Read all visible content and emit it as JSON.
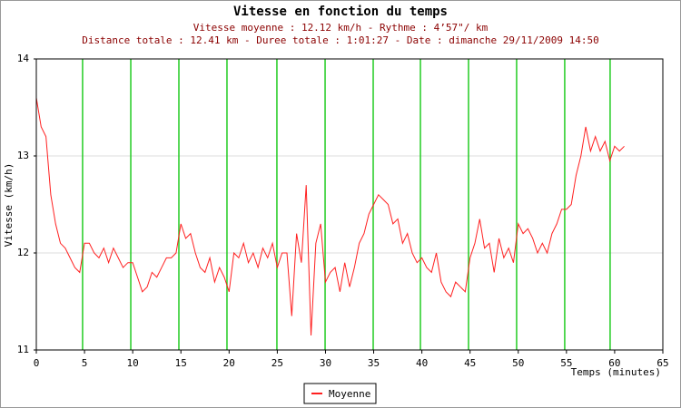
{
  "chart_data": {
    "type": "line",
    "title": "Vitesse en fonction du temps",
    "subtitles": [
      "Vitesse moyenne : 12.12 km/h - Rythme : 4’57\"/ km",
      "Distance totale : 12.41 km - Duree totale : 1:01:27 - Date : dimanche 29/11/2009 14:50"
    ],
    "x_label": "Temps (minutes)",
    "y_label": "Vitesse (km/h)",
    "xlim": [
      0,
      65
    ],
    "xticks": [
      0,
      5,
      10,
      15,
      20,
      25,
      30,
      35,
      40,
      45,
      50,
      55,
      60,
      65
    ],
    "ylim": [
      11,
      14
    ],
    "yticks": [
      11,
      12,
      13,
      14
    ],
    "grid": true,
    "markers": {
      "color": "#22cc22",
      "x": [
        4.8,
        9.8,
        14.79,
        19.78,
        24.96,
        29.96,
        34.95,
        39.85,
        44.84,
        49.83,
        54.82,
        59.53
      ]
    },
    "x": [
      0,
      0.5,
      1,
      1.5,
      2,
      2.5,
      3,
      3.5,
      4,
      4.5,
      5,
      5.5,
      6,
      6.5,
      7,
      7.5,
      8,
      8.5,
      9,
      9.5,
      10,
      10.5,
      11,
      11.5,
      12,
      12.5,
      13,
      13.5,
      14,
      14.5,
      15,
      15.5,
      16,
      16.5,
      17,
      17.5,
      18,
      18.5,
      19,
      19.5,
      20,
      20.5,
      21,
      21.5,
      22,
      22.5,
      23,
      23.5,
      24,
      24.5,
      25,
      25.5,
      26,
      26.5,
      27,
      27.5,
      28,
      28.5,
      29,
      29.5,
      30,
      30.5,
      31,
      31.5,
      32,
      32.5,
      33,
      33.5,
      34,
      34.5,
      35,
      35.5,
      36,
      36.5,
      37,
      37.5,
      38,
      38.5,
      39,
      39.5,
      40,
      40.5,
      41,
      41.5,
      42,
      42.5,
      43,
      43.5,
      44,
      44.5,
      45,
      45.5,
      46,
      46.5,
      47,
      47.5,
      48,
      48.5,
      49,
      49.5,
      50,
      50.5,
      51,
      51.5,
      52,
      52.5,
      53,
      53.5,
      54,
      54.5,
      55,
      55.5,
      56,
      56.5,
      57,
      57.5,
      58,
      58.5,
      59,
      59.5,
      60,
      60.5,
      61
    ],
    "series": [
      {
        "name": "Moyenne",
        "color": "#ff2020",
        "values": [
          13.6,
          13.3,
          13.2,
          12.6,
          12.3,
          12.1,
          12.05,
          11.95,
          11.85,
          11.8,
          12.1,
          12.1,
          12.0,
          11.95,
          12.05,
          11.9,
          12.05,
          11.95,
          11.85,
          11.9,
          11.9,
          11.75,
          11.6,
          11.65,
          11.8,
          11.75,
          11.85,
          11.95,
          11.95,
          12.0,
          12.3,
          12.15,
          12.2,
          12.0,
          11.85,
          11.8,
          11.95,
          11.7,
          11.85,
          11.75,
          11.6,
          12.0,
          11.95,
          12.1,
          11.9,
          12.0,
          11.85,
          12.05,
          11.95,
          12.1,
          11.85,
          12.0,
          12.0,
          11.35,
          12.2,
          11.9,
          12.7,
          11.15,
          12.1,
          12.3,
          11.7,
          11.8,
          11.85,
          11.6,
          11.9,
          11.65,
          11.85,
          12.1,
          12.2,
          12.4,
          12.5,
          12.6,
          12.55,
          12.5,
          12.3,
          12.35,
          12.1,
          12.2,
          12.0,
          11.9,
          11.95,
          11.85,
          11.8,
          12.0,
          11.7,
          11.6,
          11.55,
          11.7,
          11.65,
          11.6,
          11.95,
          12.1,
          12.35,
          12.05,
          12.1,
          11.8,
          12.15,
          11.95,
          12.05,
          11.9,
          12.3,
          12.2,
          12.25,
          12.15,
          12.0,
          12.1,
          12.0,
          12.2,
          12.3,
          12.45,
          12.45,
          12.5,
          12.8,
          13.0,
          13.3,
          13.05,
          13.2,
          13.05,
          13.15,
          12.95,
          13.1,
          13.05,
          13.1
        ]
      }
    ]
  }
}
